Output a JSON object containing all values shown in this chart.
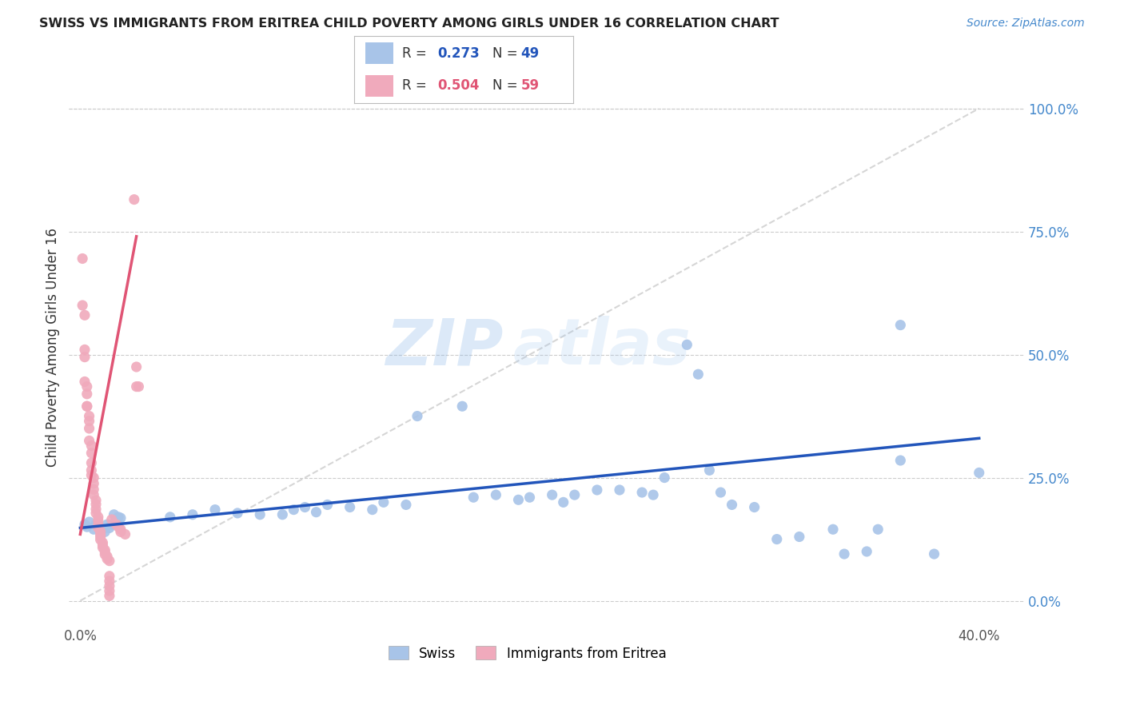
{
  "title": "SWISS VS IMMIGRANTS FROM ERITREA CHILD POVERTY AMONG GIRLS UNDER 16 CORRELATION CHART",
  "source": "Source: ZipAtlas.com",
  "ylabel": "Child Poverty Among Girls Under 16",
  "xlabel_ticks": [
    "0.0%",
    "",
    "",
    "",
    "40.0%"
  ],
  "xlabel_vals": [
    0.0,
    0.1,
    0.2,
    0.3,
    0.4
  ],
  "ylabel_ticks_right": [
    "100.0%",
    "75.0%",
    "50.0%",
    "25.0%",
    "0.0%"
  ],
  "ylabel_vals_right": [
    1.0,
    0.75,
    0.5,
    0.25,
    0.0
  ],
  "xlim": [
    -0.005,
    0.42
  ],
  "ylim": [
    -0.05,
    1.08
  ],
  "swiss_color": "#A8C4E8",
  "eritrea_color": "#F0AABC",
  "swiss_line_color": "#2255BB",
  "eritrea_line_color": "#E05575",
  "diagonal_color": "#CCCCCC",
  "swiss_scatter": [
    [
      0.002,
      0.155
    ],
    [
      0.003,
      0.15
    ],
    [
      0.004,
      0.16
    ],
    [
      0.006,
      0.145
    ],
    [
      0.007,
      0.155
    ],
    [
      0.009,
      0.145
    ],
    [
      0.01,
      0.145
    ],
    [
      0.011,
      0.14
    ],
    [
      0.012,
      0.155
    ],
    [
      0.013,
      0.148
    ],
    [
      0.014,
      0.155
    ],
    [
      0.015,
      0.175
    ],
    [
      0.016,
      0.165
    ],
    [
      0.017,
      0.17
    ],
    [
      0.018,
      0.168
    ],
    [
      0.04,
      0.17
    ],
    [
      0.05,
      0.175
    ],
    [
      0.06,
      0.185
    ],
    [
      0.07,
      0.178
    ],
    [
      0.08,
      0.175
    ],
    [
      0.09,
      0.175
    ],
    [
      0.095,
      0.185
    ],
    [
      0.1,
      0.19
    ],
    [
      0.105,
      0.18
    ],
    [
      0.11,
      0.195
    ],
    [
      0.12,
      0.19
    ],
    [
      0.13,
      0.185
    ],
    [
      0.135,
      0.2
    ],
    [
      0.145,
      0.195
    ],
    [
      0.15,
      0.375
    ],
    [
      0.17,
      0.395
    ],
    [
      0.175,
      0.21
    ],
    [
      0.185,
      0.215
    ],
    [
      0.195,
      0.205
    ],
    [
      0.2,
      0.21
    ],
    [
      0.21,
      0.215
    ],
    [
      0.215,
      0.2
    ],
    [
      0.22,
      0.215
    ],
    [
      0.23,
      0.225
    ],
    [
      0.24,
      0.225
    ],
    [
      0.25,
      0.22
    ],
    [
      0.255,
      0.215
    ],
    [
      0.26,
      0.25
    ],
    [
      0.27,
      0.52
    ],
    [
      0.275,
      0.46
    ],
    [
      0.28,
      0.265
    ],
    [
      0.285,
      0.22
    ],
    [
      0.29,
      0.195
    ],
    [
      0.3,
      0.19
    ],
    [
      0.31,
      0.125
    ],
    [
      0.32,
      0.13
    ],
    [
      0.335,
      0.145
    ],
    [
      0.34,
      0.095
    ],
    [
      0.35,
      0.1
    ],
    [
      0.355,
      0.145
    ],
    [
      0.365,
      0.285
    ],
    [
      0.365,
      0.56
    ],
    [
      0.38,
      0.095
    ],
    [
      0.4,
      0.26
    ]
  ],
  "eritrea_scatter": [
    [
      0.001,
      0.695
    ],
    [
      0.001,
      0.6
    ],
    [
      0.002,
      0.58
    ],
    [
      0.002,
      0.51
    ],
    [
      0.002,
      0.495
    ],
    [
      0.002,
      0.445
    ],
    [
      0.003,
      0.435
    ],
    [
      0.003,
      0.42
    ],
    [
      0.003,
      0.395
    ],
    [
      0.003,
      0.395
    ],
    [
      0.004,
      0.375
    ],
    [
      0.004,
      0.365
    ],
    [
      0.004,
      0.35
    ],
    [
      0.004,
      0.325
    ],
    [
      0.005,
      0.315
    ],
    [
      0.005,
      0.3
    ],
    [
      0.005,
      0.28
    ],
    [
      0.005,
      0.265
    ],
    [
      0.005,
      0.255
    ],
    [
      0.006,
      0.25
    ],
    [
      0.006,
      0.238
    ],
    [
      0.006,
      0.226
    ],
    [
      0.006,
      0.215
    ],
    [
      0.007,
      0.204
    ],
    [
      0.007,
      0.196
    ],
    [
      0.007,
      0.186
    ],
    [
      0.007,
      0.178
    ],
    [
      0.008,
      0.17
    ],
    [
      0.008,
      0.163
    ],
    [
      0.008,
      0.155
    ],
    [
      0.008,
      0.148
    ],
    [
      0.009,
      0.141
    ],
    [
      0.009,
      0.135
    ],
    [
      0.009,
      0.13
    ],
    [
      0.009,
      0.124
    ],
    [
      0.01,
      0.118
    ],
    [
      0.01,
      0.113
    ],
    [
      0.01,
      0.108
    ],
    [
      0.011,
      0.103
    ],
    [
      0.011,
      0.099
    ],
    [
      0.011,
      0.094
    ],
    [
      0.012,
      0.09
    ],
    [
      0.012,
      0.085
    ],
    [
      0.013,
      0.081
    ],
    [
      0.013,
      0.05
    ],
    [
      0.013,
      0.04
    ],
    [
      0.013,
      0.03
    ],
    [
      0.013,
      0.02
    ],
    [
      0.013,
      0.01
    ],
    [
      0.014,
      0.165
    ],
    [
      0.016,
      0.155
    ],
    [
      0.017,
      0.15
    ],
    [
      0.018,
      0.145
    ],
    [
      0.018,
      0.14
    ],
    [
      0.02,
      0.135
    ],
    [
      0.024,
      0.815
    ],
    [
      0.025,
      0.435
    ],
    [
      0.025,
      0.475
    ],
    [
      0.026,
      0.435
    ]
  ],
  "watermark_zip": "ZIP",
  "watermark_atlas": "atlas",
  "background_color": "#FFFFFF",
  "grid_color": "#CCCCCC"
}
